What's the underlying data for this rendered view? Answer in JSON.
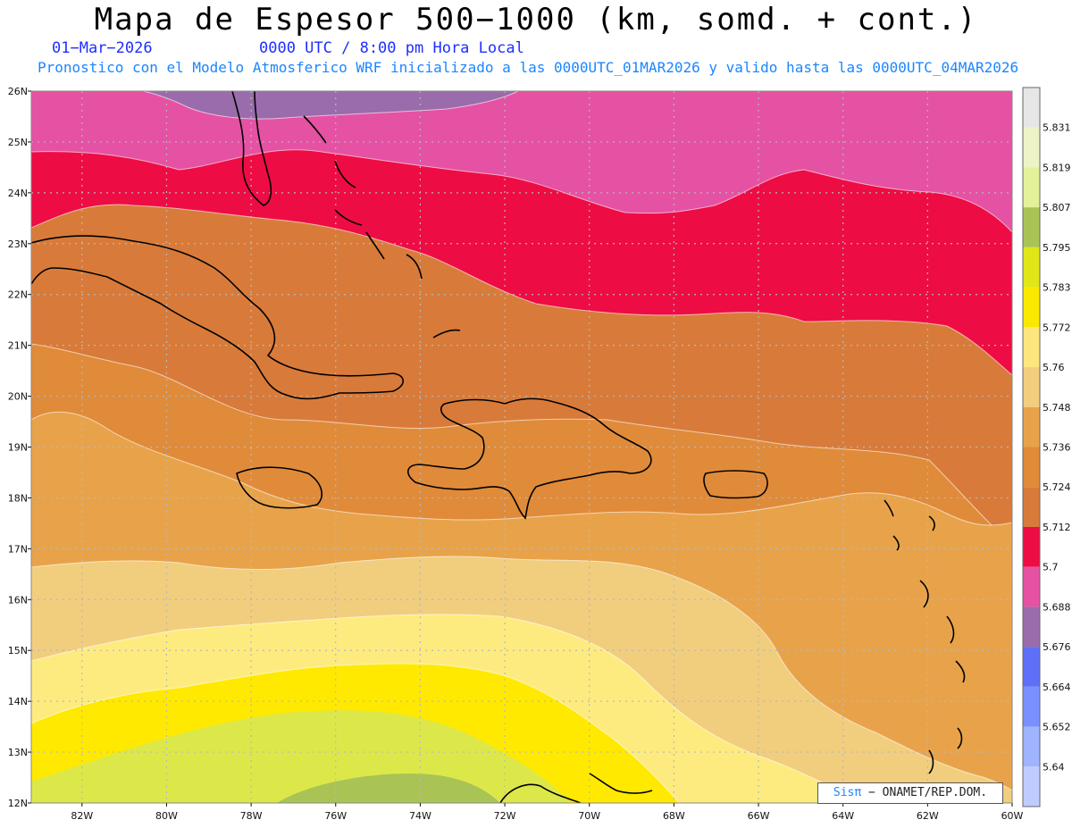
{
  "header": {
    "title": "Mapa de Espesor 500−1000 (km, somd. + cont.)",
    "date": "01−Mar−2026",
    "time": "0000 UTC / 8:00 pm Hora Local",
    "description": "Pronostico con el Modelo Atmosferico WRF inicializado a las 0000UTC_01MAR2026 y valido hasta las  0000UTC_04MAR2026"
  },
  "credit": {
    "logo": "Sisπ",
    "text": "− ONAMET/REP.DOM."
  },
  "axes": {
    "lat_labels": [
      "26N",
      "25N",
      "24N",
      "23N",
      "22N",
      "21N",
      "20N",
      "19N",
      "18N",
      "17N",
      "16N",
      "15N",
      "14N",
      "13N",
      "12N"
    ],
    "lon_labels": [
      "82W",
      "80W",
      "78W",
      "76W",
      "74W",
      "72W",
      "70W",
      "68W",
      "66W",
      "64W",
      "62W",
      "60W"
    ]
  },
  "colorbar": {
    "levels": [
      "5.831",
      "5.819",
      "5.807",
      "5.795",
      "5.783",
      "5.772",
      "5.76",
      "5.748",
      "5.736",
      "5.724",
      "5.712",
      "5.7",
      "5.688",
      "5.676",
      "5.664",
      "5.652",
      "5.64"
    ],
    "colors": [
      "#e6e6e6",
      "#eef3c7",
      "#e3f29a",
      "#a9c455",
      "#dfe718",
      "#fbe800",
      "#fde67d",
      "#f3ce7e",
      "#e8a34a",
      "#e08b38",
      "#d87b3a",
      "#ee0c44",
      "#e552a3",
      "#9a6cab",
      "#5f6ff7",
      "#7b90ff",
      "#9fb3ff",
      "#c0ccff"
    ]
  },
  "map": {
    "lat_range": [
      12,
      26
    ],
    "lon_range": [
      -83.2,
      -60
    ],
    "band_colors": [
      "#dce84a",
      "#ffe900",
      "#feeb80",
      "#f1cd7e",
      "#e8a34a",
      "#e08b3a",
      "#d87b3a",
      "#ee0c44",
      "#e552a3",
      "#9a6cab"
    ]
  }
}
